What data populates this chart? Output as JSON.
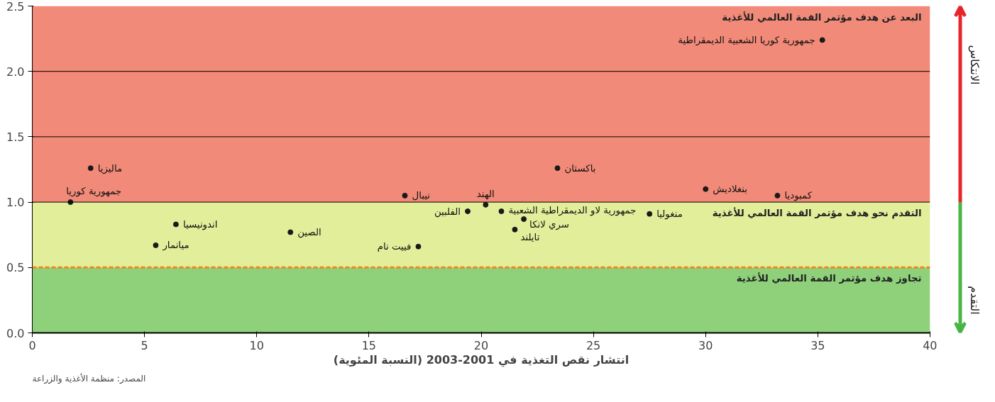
{
  "chart_data": {
    "type": "scatter",
    "xlabel": "انتشار نقص التغذية في 2001-2003 (النسبة المئوية)",
    "xlim": [
      0,
      40
    ],
    "xticks": [
      0,
      5,
      10,
      15,
      20,
      25,
      30,
      35,
      40
    ],
    "ylim": [
      0,
      2.5
    ],
    "yticks": [
      {
        "value": 0,
        "label": "0.0"
      },
      0.5,
      {
        "value": 1,
        "label": "1.0"
      },
      1.5,
      {
        "value": 2,
        "label": "2.0"
      },
      2.5
    ],
    "marker": "circle",
    "series": [
      {
        "color": "#1a1a1a",
        "x": [
          35.2,
          2.6,
          1.7,
          6.4,
          5.5,
          11.5,
          16.6,
          17.2,
          19.4,
          20.2,
          20.9,
          21.9,
          21.5,
          23.4,
          27.5,
          30.0,
          33.2
        ],
        "values": [
          2.24,
          1.26,
          1.0,
          0.83,
          0.67,
          0.77,
          1.05,
          0.66,
          0.93,
          0.98,
          0.93,
          0.87,
          0.79,
          1.26,
          0.91,
          1.1,
          1.05
        ]
      }
    ],
    "bands": [
      {
        "axis": "y",
        "from": 1.0,
        "to": 2.5,
        "label": "البعد عن هدف مؤتمر القمة العالمي للأغذية",
        "color": "#f18a78"
      },
      {
        "axis": "y",
        "from": 0.5,
        "to": 1.0,
        "label": "التقدم نحو هدف مؤتمر القمة العالمي للأغذية",
        "color": "#e3ee9a"
      },
      {
        "axis": "y",
        "from": 0.0,
        "to": 0.5,
        "label": "تجاوز هدف مؤتمر القمة العالمي للأغذية",
        "color": "#8fd07a"
      }
    ],
    "ref_lines": [
      {
        "axis": "y",
        "value": 1.0,
        "color": "#000000",
        "line_style": "solid"
      },
      {
        "axis": "y",
        "value": 1.5,
        "color": "#000000",
        "line_style": "solid"
      },
      {
        "axis": "y",
        "value": 2.0,
        "color": "#000000",
        "line_style": "solid"
      },
      {
        "axis": "y",
        "value": 0.5,
        "color": "#f0851e",
        "line_style": "dashed"
      }
    ],
    "annotations": [
      {
        "text": "جمهورية كوريا الشعبية الديمقراطية",
        "x": 35.2,
        "y": 2.24
      },
      {
        "text": "ماليزيا",
        "x": 2.6,
        "y": 1.26
      },
      {
        "text": "جمهورية كوريا",
        "x": 1.7,
        "y": 1.0
      },
      {
        "text": "اندونيسيا",
        "x": 6.4,
        "y": 0.83
      },
      {
        "text": "ميانمار",
        "x": 5.5,
        "y": 0.67
      },
      {
        "text": "الصين",
        "x": 11.5,
        "y": 0.77
      },
      {
        "text": "نيبال",
        "x": 16.6,
        "y": 1.05
      },
      {
        "text": "فييت نام",
        "x": 17.2,
        "y": 0.66
      },
      {
        "text": "الفلبين",
        "x": 19.4,
        "y": 0.93
      },
      {
        "text": "الهند",
        "x": 20.2,
        "y": 0.98
      },
      {
        "text": "جمهورية لاو الديمقراطية الشعبية",
        "x": 20.9,
        "y": 0.93
      },
      {
        "text": "سري لانكا",
        "x": 21.9,
        "y": 0.87
      },
      {
        "text": "تايلند",
        "x": 21.5,
        "y": 0.79
      },
      {
        "text": "باكستان",
        "x": 23.4,
        "y": 1.26
      },
      {
        "text": "منغوليا",
        "x": 27.5,
        "y": 0.91
      },
      {
        "text": "بنغلاديش",
        "x": 30.0,
        "y": 1.1
      },
      {
        "text": "كمبوديا",
        "x": 33.2,
        "y": 1.05
      },
      "الانتكاس",
      "التقدم",
      "المصدر: منظمة الأغذية والزراعة"
    ]
  }
}
